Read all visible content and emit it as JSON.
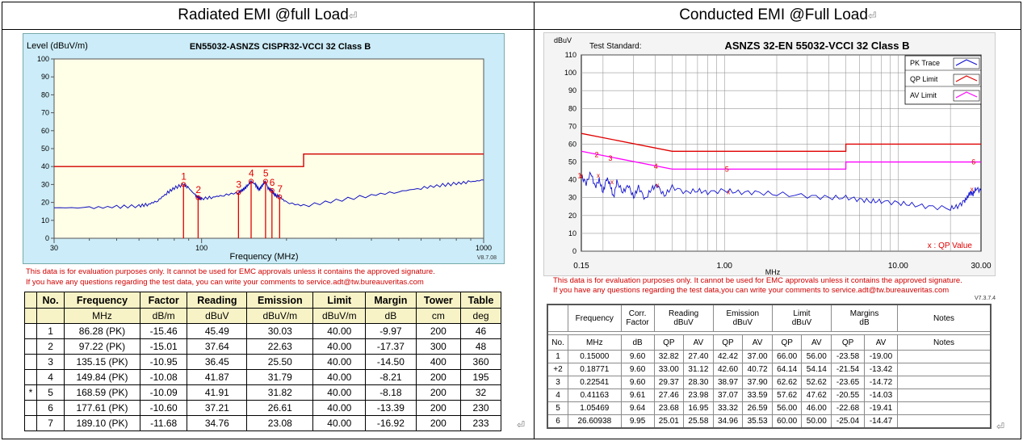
{
  "headers": {
    "left": "Radiated EMI @full Load",
    "right": "Conducted EMI @Full Load"
  },
  "return_mark": "⏎",
  "radiated": {
    "chart_data": {
      "type": "line",
      "title": "EN55032-ASNZS CISPR32-VCCI 32 Class B",
      "ylabel": "Level (dBuV/m)",
      "xlabel": "Frequency (MHz)",
      "version": "V8.7.08",
      "x_scale": "log",
      "xlim": [
        30,
        1000
      ],
      "ylim": [
        0,
        100
      ],
      "x_ticks": [
        "30",
        "100",
        "1000"
      ],
      "y_ticks": [
        "0",
        "10",
        "20",
        "30",
        "40",
        "50",
        "60",
        "70",
        "80",
        "90",
        "100"
      ],
      "limit_line": {
        "x": [
          30,
          230,
          230,
          1000
        ],
        "y": [
          40,
          40,
          47,
          47
        ]
      },
      "trace": {
        "x": [
          30,
          40,
          50,
          60,
          65,
          70,
          75,
          80,
          86.28,
          90,
          95,
          97.22,
          100,
          110,
          120,
          135.15,
          140,
          145,
          149.84,
          155,
          160,
          165,
          168.59,
          172,
          177.61,
          182,
          189.1,
          200,
          230,
          300,
          400,
          500,
          600,
          700,
          800,
          900,
          1000
        ],
        "y": [
          17,
          17,
          17.5,
          18,
          19,
          21,
          25,
          28,
          30.03,
          28,
          24,
          22.63,
          22,
          23,
          24,
          25.5,
          27,
          29,
          31.79,
          30,
          27,
          30,
          31.82,
          28,
          26.61,
          24,
          23.08,
          20,
          18,
          21,
          24,
          26,
          28,
          29.5,
          30.5,
          31.5,
          32.5
        ]
      },
      "markers": [
        {
          "label": "1",
          "x": 86.28,
          "y": 30.03
        },
        {
          "label": "2",
          "x": 97.22,
          "y": 22.63
        },
        {
          "label": "3",
          "x": 135.15,
          "y": 25.5
        },
        {
          "label": "4",
          "x": 149.84,
          "y": 31.79
        },
        {
          "label": "5",
          "x": 168.59,
          "y": 31.82
        },
        {
          "label": "6",
          "x": 177.61,
          "y": 26.61
        },
        {
          "label": "7",
          "x": 189.1,
          "y": 23.08
        }
      ]
    },
    "note_line1": "This data is for evaluation purposes only.  It cannot be used for EMC approvals unless it contains the approved signature.",
    "note_line2": "If you have any questions regarding the test data, you can write your comments to service.adt@tw.bureauveritas.com",
    "table": {
      "headers1": [
        "No.",
        "Frequency",
        "Factor",
        "Reading",
        "Emission",
        "Limit",
        "Margin",
        "Tower",
        "Table"
      ],
      "headers2": [
        "",
        "MHz",
        "dB/m",
        "dBuV",
        "dBuV/m",
        "dBuV/m",
        "dB",
        "cm",
        "deg"
      ],
      "rows": [
        [
          "",
          "1",
          "86.28 (PK)",
          "-15.46",
          "45.49",
          "30.03",
          "40.00",
          "-9.97",
          "200",
          "46"
        ],
        [
          "",
          "2",
          "97.22 (PK)",
          "-15.01",
          "37.64",
          "22.63",
          "40.00",
          "-17.37",
          "300",
          "48"
        ],
        [
          "",
          "3",
          "135.15 (PK)",
          "-10.95",
          "36.45",
          "25.50",
          "40.00",
          "-14.50",
          "400",
          "360"
        ],
        [
          "",
          "4",
          "149.84 (PK)",
          "-10.08",
          "41.87",
          "31.79",
          "40.00",
          "-8.21",
          "200",
          "195"
        ],
        [
          "*",
          "5",
          "168.59 (PK)",
          "-10.09",
          "41.91",
          "31.82",
          "40.00",
          "-8.18",
          "200",
          "32"
        ],
        [
          "",
          "6",
          "177.61 (PK)",
          "-10.60",
          "37.21",
          "26.61",
          "40.00",
          "-13.39",
          "200",
          "230"
        ],
        [
          "",
          "7",
          "189.10 (PK)",
          "-11.68",
          "34.76",
          "23.08",
          "40.00",
          "-16.92",
          "200",
          "233"
        ]
      ]
    }
  },
  "conducted": {
    "chart_data": {
      "type": "line",
      "title": "ASNZS 32-EN 55032-VCCI 32 Class B",
      "test_standard_label": "Test Standard:",
      "ylabel": "dBuV",
      "xlabel": "MHz",
      "x_scale": "log",
      "xlim": [
        0.15,
        30
      ],
      "ylim": [
        0,
        110
      ],
      "x_ticks": [
        "0.15",
        "1.00",
        "10.00",
        "30.00"
      ],
      "y_ticks": [
        "0",
        "10",
        "20",
        "30",
        "40",
        "50",
        "60",
        "70",
        "80",
        "90",
        "100",
        "110"
      ],
      "legend": [
        "PK Trace",
        "QP Limit",
        "AV Limit"
      ],
      "legend_colors": [
        "#1010d0",
        "#e00000",
        "#ff00ff"
      ],
      "qp_value_legend": "x :  QP   Value",
      "qp_limit": {
        "x": [
          0.15,
          0.5,
          0.5,
          5,
          5,
          30
        ],
        "y": [
          66,
          56,
          56,
          56,
          60,
          60
        ]
      },
      "av_limit": {
        "x": [
          0.15,
          0.5,
          0.5,
          5,
          5,
          30
        ],
        "y": [
          56,
          46,
          46,
          46,
          50,
          50
        ]
      },
      "trace": {
        "x": [
          0.15,
          0.16,
          0.17,
          0.18,
          0.19,
          0.2,
          0.21,
          0.22,
          0.23,
          0.24,
          0.26,
          0.28,
          0.3,
          0.32,
          0.35,
          0.38,
          0.41,
          0.45,
          0.5,
          0.6,
          0.7,
          0.8,
          1.0,
          1.2,
          1.5,
          2,
          3,
          4,
          5,
          6,
          7,
          8,
          10,
          12,
          15,
          20,
          22,
          24,
          25,
          26,
          27,
          28,
          30
        ],
        "y": [
          42,
          38,
          44,
          36,
          40,
          33,
          41,
          37,
          30,
          39,
          33,
          37,
          30,
          36,
          29,
          35,
          37,
          31,
          36,
          33,
          34,
          33,
          34,
          33,
          33,
          32,
          31,
          30,
          30,
          29,
          28,
          28,
          27,
          26,
          25,
          24,
          25,
          28,
          30,
          33,
          32,
          35,
          34
        ]
      },
      "markers": [
        {
          "label": "1",
          "x": 0.15,
          "y": 42.42
        },
        {
          "label": "2",
          "x": 0.18771,
          "y": 54
        },
        {
          "label": "3",
          "x": 0.22541,
          "y": 52
        },
        {
          "label": "4",
          "x": 0.41163,
          "y": 47.5
        },
        {
          "label": "5",
          "x": 1.05469,
          "y": 46
        },
        {
          "label": "6",
          "x": 26.60938,
          "y": 50
        }
      ],
      "qp_points": [
        {
          "x": 0.15,
          "y": 42.42
        },
        {
          "x": 0.18771,
          "y": 42.6
        },
        {
          "x": 0.22541,
          "y": 38.97
        },
        {
          "x": 0.41163,
          "y": 37.07
        },
        {
          "x": 1.05469,
          "y": 33.32
        },
        {
          "x": 26.60938,
          "y": 34.96
        }
      ]
    },
    "note_line1": "This data is for evaluation purposes only.  It cannot be used for EMC approvals unless it contains the approved signature.",
    "note_line2": "If you have any questions regarding the test data,you can write your comments to  service.adt@tw.bureauveritas.com",
    "version": "V7.3.7.4",
    "table": {
      "header1": {
        "frequency": "Frequency",
        "corr1": "Corr.",
        "corr2": "Factor",
        "reading1": "Reading",
        "reading2": "dBuV",
        "emission1": "Emission",
        "emission2": "dBuV",
        "limit1": "Limit",
        "limit2": "dBuV",
        "margins1": "Margins",
        "margins2": "dB",
        "notes": "Notes"
      },
      "header2": [
        "No.",
        "MHz",
        "dB",
        "QP",
        "AV",
        "QP",
        "AV",
        "QP",
        "AV",
        "QP",
        "AV",
        "Notes"
      ],
      "rows": [
        [
          "1",
          "0.15000",
          "9.60",
          "32.82",
          "27.40",
          "42.42",
          "37.00",
          "66.00",
          "56.00",
          "-23.58",
          "-19.00",
          ""
        ],
        [
          "+2",
          "0.18771",
          "9.60",
          "33.00",
          "31.12",
          "42.60",
          "40.72",
          "64.14",
          "54.14",
          "-21.54",
          "-13.42",
          ""
        ],
        [
          "3",
          "0.22541",
          "9.60",
          "29.37",
          "28.30",
          "38.97",
          "37.90",
          "62.62",
          "52.62",
          "-23.65",
          "-14.72",
          ""
        ],
        [
          "4",
          "0.41163",
          "9.61",
          "27.46",
          "23.98",
          "37.07",
          "33.59",
          "57.62",
          "47.62",
          "-20.55",
          "-14.03",
          ""
        ],
        [
          "5",
          "1.05469",
          "9.64",
          "23.68",
          "16.95",
          "33.32",
          "26.59",
          "56.00",
          "46.00",
          "-22.68",
          "-19.41",
          ""
        ],
        [
          "6",
          "26.60938",
          "9.95",
          "25.01",
          "25.58",
          "34.96",
          "35.53",
          "60.00",
          "50.00",
          "-25.04",
          "-14.47",
          ""
        ]
      ]
    }
  }
}
